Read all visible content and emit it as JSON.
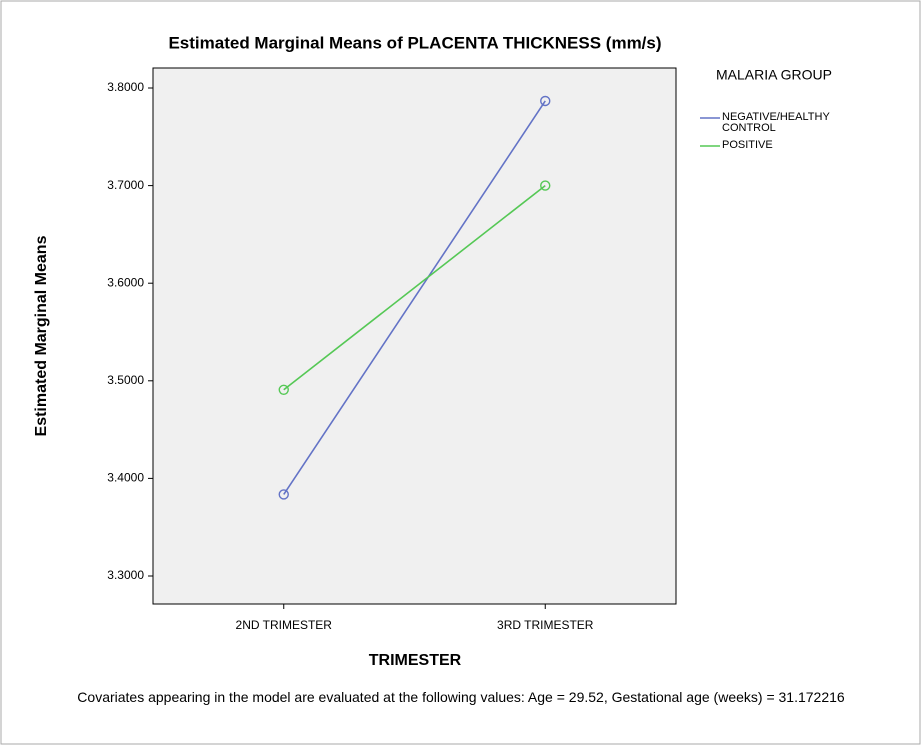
{
  "chart_data": {
    "type": "line",
    "title": "Estimated Marginal Means of PLACENTA THICKNESS (mm/s)",
    "xlabel": "TRIMESTER",
    "ylabel": "Estimated Marginal Means",
    "categories": [
      "2ND TRIMESTER",
      "3RD TRIMESTER"
    ],
    "series": [
      {
        "name": "NEGATIVE/HEALTHY CONTROL",
        "color": "#6373c6",
        "values": [
          3.3836,
          3.7867
        ]
      },
      {
        "name": "POSITIVE",
        "color": "#55c855",
        "values": [
          3.4908,
          3.7
        ]
      }
    ],
    "legend_title": "MALARIA GROUP",
    "ylim": [
      3.2713,
      3.8205
    ],
    "yticks": [
      {
        "value": 3.3,
        "label": "3.3000"
      },
      {
        "value": 3.4,
        "label": "3.4000"
      },
      {
        "value": 3.5,
        "label": "3.5000"
      },
      {
        "value": 3.6,
        "label": "3.6000"
      },
      {
        "value": 3.7,
        "label": "3.7000"
      },
      {
        "value": 3.8,
        "label": "3.8000"
      }
    ],
    "footnote": "Covariates appearing in the model are evaluated at the following values: Age = 29.52, Gestational age (weeks) = 31.172216"
  }
}
